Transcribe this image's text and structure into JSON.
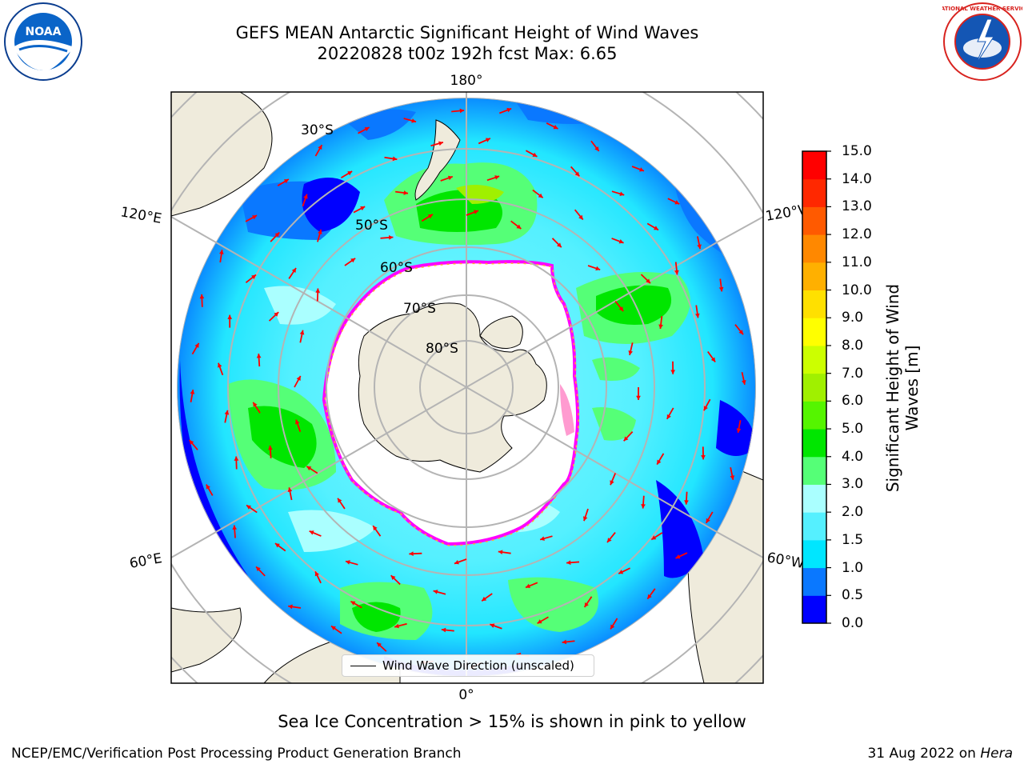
{
  "header": {
    "title_line1": "GEFS MEAN Antarctic Significant Height of Wind Waves",
    "title_line2": "20220828 t00z 192h fcst   Max: 6.65"
  },
  "map": {
    "projection": "south-polar-stereographic",
    "longitude_labels": [
      "180°",
      "120°E",
      "120°W",
      "60°E",
      "60°W",
      "0°"
    ],
    "latitude_labels": [
      "30°S",
      "50°S",
      "60°S",
      "70°S",
      "80°S"
    ],
    "legend_label": "Wind Wave Direction (unscaled)",
    "arrow_color": "#ff0000",
    "land_color": "#efebdc",
    "ice_edge_colors": [
      "#ff00ff",
      "#ffb030"
    ]
  },
  "colorbar": {
    "title": "Significant Height of Wind Waves [m]",
    "ticks": [
      "0.0",
      "0.5",
      "1.0",
      "1.5",
      "2.0",
      "3.0",
      "4.0",
      "5.0",
      "6.0",
      "7.0",
      "8.0",
      "9.0",
      "10.0",
      "11.0",
      "12.0",
      "13.0",
      "14.0",
      "15.0"
    ],
    "colors": [
      "#0000ff",
      "#0a78ff",
      "#00e6ff",
      "#55f0ff",
      "#aaffff",
      "#55ff77",
      "#00e600",
      "#55f500",
      "#a0f000",
      "#ccff00",
      "#ffff00",
      "#ffe000",
      "#ffb000",
      "#ff8800",
      "#ff5a00",
      "#ff2800",
      "#ff0000"
    ]
  },
  "note": "Sea Ice Concentration > 15% is shown in pink to yellow",
  "footer": {
    "left": "NCEP/EMC/Verification Post Processing Product Generation Branch",
    "right_date": "31 Aug 2022 on ",
    "right_machine": "Hera"
  },
  "logos": {
    "noaa_text": "NOAA",
    "nws_text": "NATIONAL WEATHER SERVICE"
  }
}
